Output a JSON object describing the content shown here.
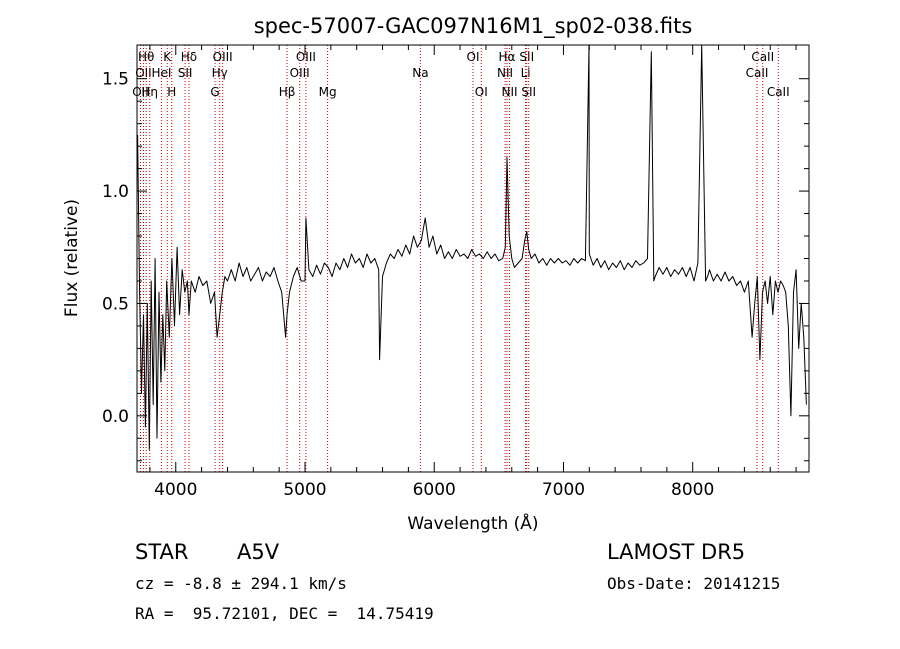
{
  "chart_data": {
    "type": "line",
    "title": "spec-57007-GAC097N16M1_sp02-038.fits",
    "xlabel": "Wavelength (Å)",
    "ylabel": "Flux (relative)",
    "xlim": [
      3700,
      8900
    ],
    "ylim": [
      -0.25,
      1.65
    ],
    "x_ticks": [
      4000,
      5000,
      6000,
      7000,
      8000
    ],
    "y_ticks": [
      0.0,
      0.5,
      1.0,
      1.5
    ],
    "y_tick_labels": [
      "0.0",
      "0.5",
      "1.0",
      "1.5"
    ],
    "grid": false,
    "colors": {
      "spectrum": "#000000",
      "line_markers": "#cc0000"
    },
    "series": [
      {
        "x": [
          3705,
          3720,
          3735,
          3750,
          3765,
          3780,
          3795,
          3810,
          3825,
          3840,
          3855,
          3870,
          3885,
          3900,
          3915,
          3930,
          3950,
          3970,
          3990,
          4010,
          4030,
          4050,
          4070,
          4090,
          4102,
          4120,
          4150,
          4180,
          4210,
          4240,
          4270,
          4300,
          4320,
          4340,
          4360,
          4380,
          4400,
          4430,
          4460,
          4490,
          4520,
          4550,
          4580,
          4610,
          4640,
          4670,
          4700,
          4730,
          4760,
          4790,
          4820,
          4850,
          4861,
          4880,
          4910,
          4940,
          4970,
          5000,
          5007,
          5030,
          5060,
          5090,
          5120,
          5150,
          5180,
          5210,
          5240,
          5270,
          5300,
          5330,
          5360,
          5390,
          5420,
          5450,
          5480,
          5510,
          5540,
          5570,
          5577,
          5600,
          5630,
          5660,
          5690,
          5720,
          5750,
          5780,
          5810,
          5840,
          5870,
          5900,
          5930,
          5960,
          5990,
          6020,
          6050,
          6080,
          6110,
          6140,
          6170,
          6200,
          6230,
          6260,
          6290,
          6320,
          6350,
          6380,
          6410,
          6440,
          6470,
          6500,
          6530,
          6550,
          6563,
          6580,
          6600,
          6620,
          6650,
          6680,
          6700,
          6716,
          6731,
          6750,
          6780,
          6810,
          6840,
          6870,
          6900,
          6930,
          6960,
          6990,
          7020,
          7050,
          7080,
          7110,
          7140,
          7170,
          7198,
          7200,
          7230,
          7260,
          7290,
          7320,
          7350,
          7380,
          7410,
          7440,
          7470,
          7500,
          7530,
          7560,
          7590,
          7620,
          7650,
          7680,
          7699,
          7710,
          7740,
          7770,
          7800,
          7830,
          7860,
          7890,
          7920,
          7950,
          7980,
          8010,
          8040,
          8070,
          8100,
          8115,
          8130,
          8160,
          8190,
          8220,
          8250,
          8280,
          8310,
          8340,
          8370,
          8400,
          8430,
          8460,
          8480,
          8500,
          8520,
          8540,
          8560,
          8580,
          8600,
          8620,
          8640,
          8660,
          8680,
          8700,
          8720,
          8740,
          8760,
          8780,
          8800,
          8820,
          8840,
          8860,
          8880
        ],
        "y": [
          1.25,
          0.55,
          0.1,
          0.45,
          -0.05,
          0.5,
          -0.15,
          0.6,
          0.05,
          0.7,
          -0.1,
          0.55,
          0.15,
          0.45,
          0.2,
          0.6,
          0.35,
          0.7,
          0.4,
          0.75,
          0.45,
          0.65,
          0.55,
          0.6,
          0.45,
          0.6,
          0.55,
          0.62,
          0.58,
          0.6,
          0.5,
          0.55,
          0.35,
          0.45,
          0.55,
          0.62,
          0.6,
          0.65,
          0.6,
          0.68,
          0.62,
          0.66,
          0.6,
          0.63,
          0.66,
          0.6,
          0.64,
          0.62,
          0.66,
          0.6,
          0.55,
          0.35,
          0.45,
          0.55,
          0.62,
          0.66,
          0.6,
          0.6,
          0.88,
          0.65,
          0.62,
          0.67,
          0.63,
          0.68,
          0.66,
          0.62,
          0.68,
          0.65,
          0.7,
          0.66,
          0.72,
          0.68,
          0.7,
          0.66,
          0.72,
          0.68,
          0.7,
          0.65,
          0.25,
          0.62,
          0.68,
          0.72,
          0.7,
          0.74,
          0.71,
          0.76,
          0.72,
          0.8,
          0.75,
          0.78,
          0.88,
          0.75,
          0.8,
          0.72,
          0.76,
          0.7,
          0.73,
          0.7,
          0.74,
          0.71,
          0.72,
          0.7,
          0.74,
          0.71,
          0.72,
          0.7,
          0.73,
          0.7,
          0.72,
          0.69,
          0.7,
          0.75,
          1.15,
          0.8,
          0.7,
          0.66,
          0.68,
          0.7,
          0.78,
          0.82,
          0.74,
          0.7,
          0.72,
          0.68,
          0.7,
          0.67,
          0.7,
          0.68,
          0.7,
          0.68,
          0.69,
          0.67,
          0.7,
          0.68,
          0.7,
          0.69,
          1.65,
          0.72,
          0.67,
          0.7,
          0.66,
          0.69,
          0.65,
          0.68,
          0.66,
          0.69,
          0.65,
          0.68,
          0.66,
          0.69,
          0.67,
          0.68,
          0.7,
          1.62,
          0.6,
          0.62,
          0.66,
          0.63,
          0.66,
          0.62,
          0.65,
          0.63,
          0.66,
          0.62,
          0.66,
          0.6,
          0.68,
          1.65,
          0.6,
          0.62,
          0.65,
          0.6,
          0.63,
          0.6,
          0.64,
          0.6,
          0.62,
          0.58,
          0.6,
          0.55,
          0.6,
          0.35,
          0.5,
          0.62,
          0.25,
          0.55,
          0.6,
          0.5,
          0.62,
          0.45,
          0.6,
          0.55,
          0.6,
          0.58,
          0.55,
          0.4,
          0.0,
          0.55,
          0.65,
          0.3,
          0.5,
          0.35,
          0.05
        ]
      }
    ],
    "spectral_lines": [
      {
        "wl": 3727,
        "label": "OII",
        "row": 3
      },
      {
        "wl": 3750,
        "label": "OII",
        "row": 2
      },
      {
        "wl": 3771,
        "label": "Hθ",
        "row": 1
      },
      {
        "wl": 3798,
        "label": "Hη",
        "row": 3
      },
      {
        "wl": 3889,
        "label": "HeI",
        "row": 2
      },
      {
        "wl": 3934,
        "label": "K",
        "row": 1
      },
      {
        "wl": 3969,
        "label": "H",
        "row": 3
      },
      {
        "wl": 4072,
        "label": "SII",
        "row": 2
      },
      {
        "wl": 4102,
        "label": "Hδ",
        "row": 1
      },
      {
        "wl": 4304,
        "label": "G",
        "row": 3
      },
      {
        "wl": 4340,
        "label": "Hγ",
        "row": 2
      },
      {
        "wl": 4363,
        "label": "OIII",
        "row": 1
      },
      {
        "wl": 4861,
        "label": "Hβ",
        "row": 3
      },
      {
        "wl": 4959,
        "label": "OIII",
        "row": 2
      },
      {
        "wl": 5007,
        "label": "OIII",
        "row": 1
      },
      {
        "wl": 5175,
        "label": "Mg",
        "row": 3
      },
      {
        "wl": 5893,
        "label": "Na",
        "row": 2
      },
      {
        "wl": 6300,
        "label": "OI",
        "row": 1
      },
      {
        "wl": 6364,
        "label": "OI",
        "row": 3
      },
      {
        "wl": 6548,
        "label": "NII",
        "row": 2
      },
      {
        "wl": 6563,
        "label": "Hα",
        "row": 1
      },
      {
        "wl": 6583,
        "label": "NII",
        "row": 3
      },
      {
        "wl": 6707,
        "label": "Li",
        "row": 2
      },
      {
        "wl": 6716,
        "label": "SII",
        "row": 1
      },
      {
        "wl": 6731,
        "label": "SII",
        "row": 3
      },
      {
        "wl": 8498,
        "label": "CaII",
        "row": 2
      },
      {
        "wl": 8542,
        "label": "CaII",
        "row": 1
      },
      {
        "wl": 8662,
        "label": "CaII",
        "row": 3
      }
    ]
  },
  "info": {
    "object_type": "STAR",
    "subclass": "A5V",
    "survey": "LAMOST DR5",
    "cz": "cz = -8.8 ± 294.1 km/s",
    "obs_date": "Obs-Date: 20141215",
    "radec": "RA =  95.72101, DEC =  14.75419"
  }
}
